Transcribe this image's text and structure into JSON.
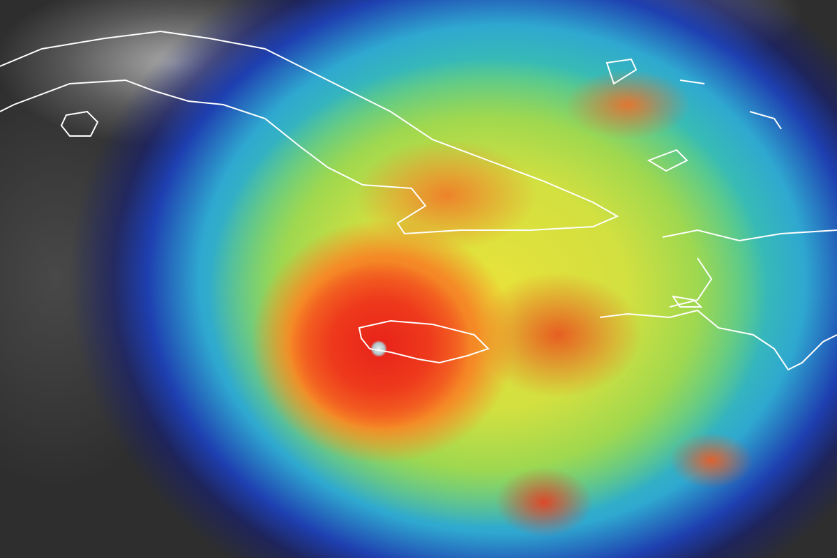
{
  "image": {
    "subject": "hurricane-satellite-view",
    "colors": {
      "eye": "#e8f0f0",
      "core": "#e8221a",
      "orange": "#f58a26",
      "yellow": "#e9e23a",
      "green": "#6fd07a",
      "cyan": "#2fa8d0",
      "blue": "#1e3fb0",
      "land_clouds": "#2e2e2e",
      "coastline": "#ffffff"
    }
  }
}
